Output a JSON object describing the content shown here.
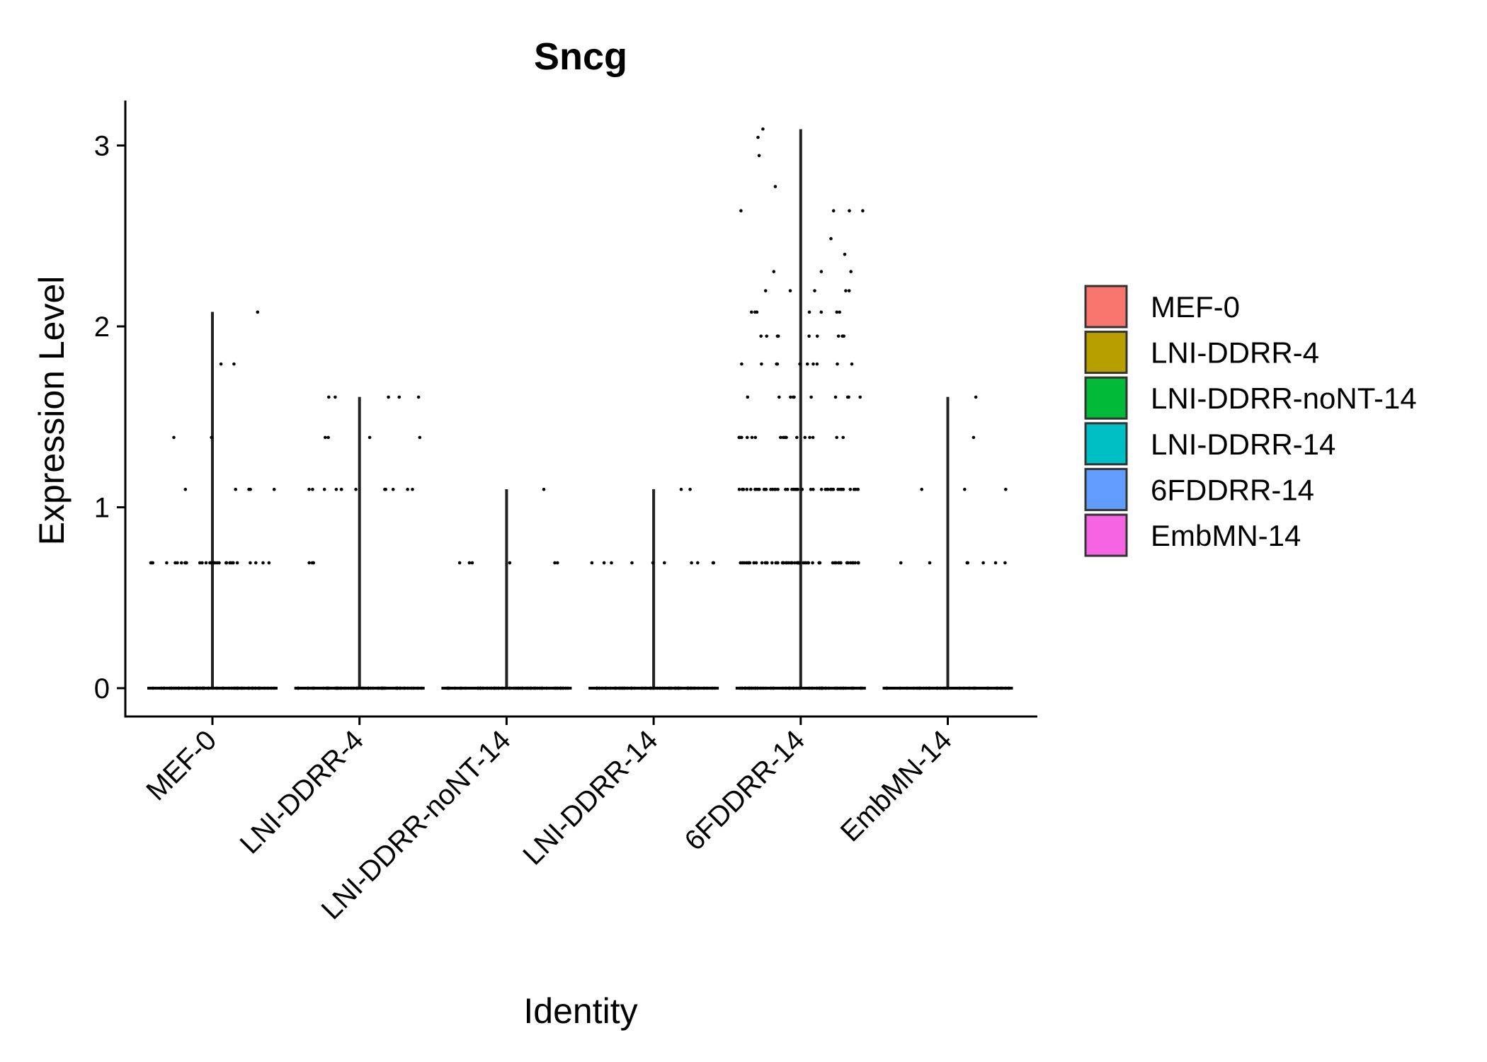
{
  "chart_data": {
    "type": "violin",
    "title": "Sncg",
    "xlabel": "Identity",
    "ylabel": "Expression Level",
    "ylim": [
      -0.15,
      3.25
    ],
    "yticks": [
      0,
      1,
      2,
      3
    ],
    "categories": [
      "MEF-0",
      "LNI-DDRR-4",
      "LNI-DDRR-noNT-14",
      "LNI-DDRR-14",
      "6FDDRR-14",
      "EmbMN-14"
    ],
    "legend": {
      "position": "right",
      "items": [
        {
          "label": "MEF-0",
          "color": "#F8766D"
        },
        {
          "label": "LNI-DDRR-4",
          "color": "#B79F00"
        },
        {
          "label": "LNI-DDRR-noNT-14",
          "color": "#00BA38"
        },
        {
          "label": "LNI-DDRR-14",
          "color": "#00BFC4"
        },
        {
          "label": "6FDDRR-14",
          "color": "#619CFF"
        },
        {
          "label": "EmbMN-14",
          "color": "#F564E3"
        }
      ]
    },
    "series": [
      {
        "category": "MEF-0",
        "max": 2.08,
        "points": [
          {
            "y": 0,
            "count": 60
          },
          {
            "y": 0.693,
            "count": 30
          },
          {
            "y": 1.099,
            "count": 5
          },
          {
            "y": 1.386,
            "count": 2
          },
          {
            "y": 1.792,
            "count": 2
          },
          {
            "y": 2.079,
            "count": 1
          }
        ]
      },
      {
        "category": "LNI-DDRR-4",
        "max": 1.61,
        "points": [
          {
            "y": 0,
            "count": 60
          },
          {
            "y": 0.693,
            "count": 3
          },
          {
            "y": 1.099,
            "count": 12
          },
          {
            "y": 1.386,
            "count": 4
          },
          {
            "y": 1.609,
            "count": 5
          }
        ]
      },
      {
        "category": "LNI-DDRR-noNT-14",
        "max": 1.1,
        "points": [
          {
            "y": 0,
            "count": 60
          },
          {
            "y": 0.693,
            "count": 6
          },
          {
            "y": 1.099,
            "count": 1
          }
        ]
      },
      {
        "category": "LNI-DDRR-14",
        "max": 1.1,
        "points": [
          {
            "y": 0,
            "count": 60
          },
          {
            "y": 0.693,
            "count": 10
          },
          {
            "y": 1.099,
            "count": 2
          }
        ]
      },
      {
        "category": "6FDDRR-14",
        "max": 3.09,
        "points": [
          {
            "y": 0,
            "count": 60
          },
          {
            "y": 0.693,
            "count": 60
          },
          {
            "y": 1.099,
            "count": 45
          },
          {
            "y": 1.386,
            "count": 18
          },
          {
            "y": 1.609,
            "count": 10
          },
          {
            "y": 1.792,
            "count": 10
          },
          {
            "y": 1.946,
            "count": 10
          },
          {
            "y": 2.079,
            "count": 7
          },
          {
            "y": 2.197,
            "count": 5
          },
          {
            "y": 2.303,
            "count": 3
          },
          {
            "y": 2.398,
            "count": 1
          },
          {
            "y": 2.485,
            "count": 1
          },
          {
            "y": 2.639,
            "count": 4
          },
          {
            "y": 2.773,
            "count": 1
          },
          {
            "y": 2.944,
            "count": 1
          },
          {
            "y": 3.045,
            "count": 1
          },
          {
            "y": 3.091,
            "count": 1
          }
        ]
      },
      {
        "category": "EmbMN-14",
        "max": 1.61,
        "points": [
          {
            "y": 0,
            "count": 35
          },
          {
            "y": 0.693,
            "count": 7
          },
          {
            "y": 1.099,
            "count": 3
          },
          {
            "y": 1.386,
            "count": 1
          },
          {
            "y": 1.609,
            "count": 1
          }
        ]
      }
    ]
  }
}
